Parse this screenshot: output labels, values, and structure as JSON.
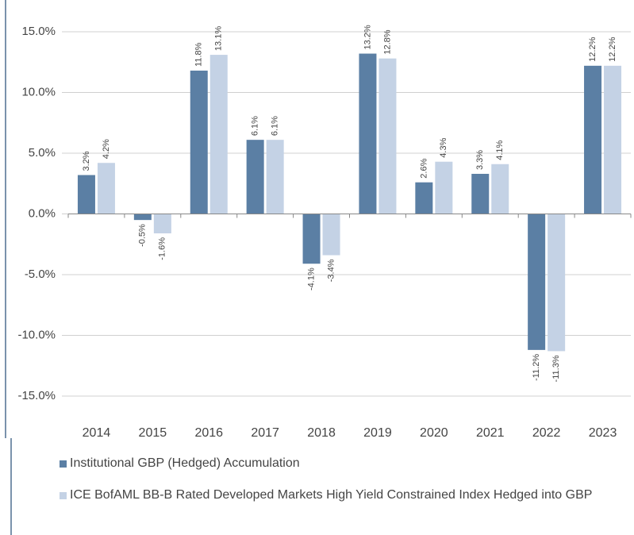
{
  "chart_data": {
    "type": "bar",
    "categories": [
      "2014",
      "2015",
      "2016",
      "2017",
      "2018",
      "2019",
      "2020",
      "2021",
      "2022",
      "2023"
    ],
    "series": [
      {
        "name": "Institutional GBP (Hedged) Accumulation",
        "color": "#5b7fa4",
        "values": [
          3.2,
          -0.5,
          11.8,
          6.1,
          -4.1,
          13.2,
          2.6,
          3.3,
          -11.2,
          12.2
        ],
        "value_labels": [
          "3.2%",
          "-0.5%",
          "11.8%",
          "6.1%",
          "-4.1%",
          "13.2%",
          "2.6%",
          "3.3%",
          "-11.2%",
          "12.2%"
        ]
      },
      {
        "name": "ICE BofAML BB-B Rated Developed Markets High Yield Constrained Index Hedged into GBP",
        "color": "#c4d2e5",
        "values": [
          4.2,
          -1.6,
          13.1,
          6.1,
          -3.4,
          12.8,
          4.3,
          4.1,
          -11.3,
          12.2
        ],
        "value_labels": [
          "4.2%",
          "-1.6%",
          "13.1%",
          "6.1%",
          "-3.4%",
          "12.8%",
          "4.3%",
          "4.1%",
          "-11.3%",
          "12.2%"
        ]
      }
    ],
    "ylim": [
      -15,
      15
    ],
    "yticks": [
      {
        "value": -15,
        "label": "-15.0%"
      },
      {
        "value": -10,
        "label": "-10.0%"
      },
      {
        "value": -5,
        "label": "-5.0%"
      },
      {
        "value": 0,
        "label": "0.0%"
      },
      {
        "value": 5,
        "label": "5.0%"
      },
      {
        "value": 10,
        "label": "10.0%"
      },
      {
        "value": 15,
        "label": "15.0%"
      }
    ],
    "grid": true,
    "legend": "bottom"
  }
}
